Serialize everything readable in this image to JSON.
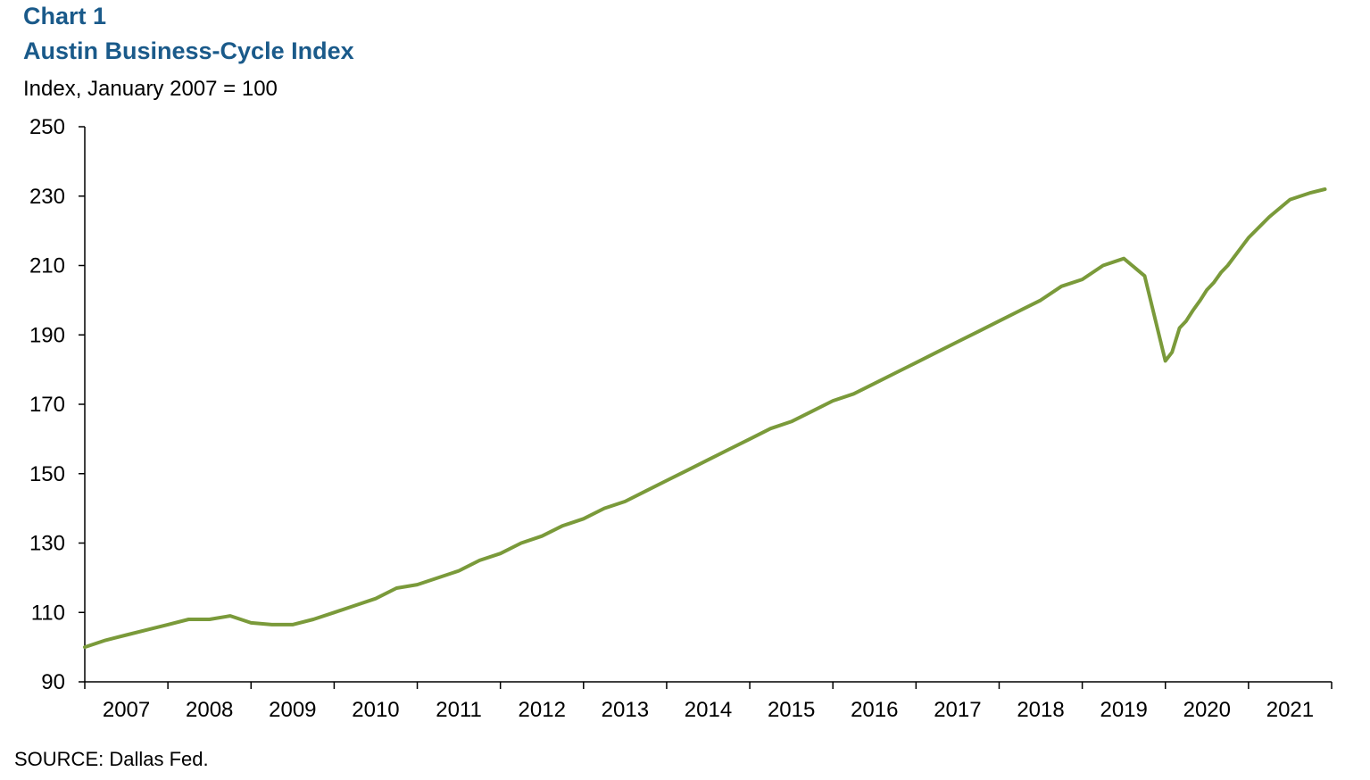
{
  "header": {
    "chart_number": "Chart 1",
    "title": "Austin Business-Cycle Index",
    "unit_label": "Index, January 2007 = 100"
  },
  "footer": {
    "source": "SOURCE: Dallas Fed."
  },
  "colors": {
    "title": "#1a5a8a",
    "series": "#7a9a3a",
    "axis": "#000000"
  },
  "chart_data": {
    "type": "line",
    "title": "Austin Business-Cycle Index",
    "ylabel": "Index, January 2007 = 100",
    "xlabel": "",
    "ylim": [
      90,
      250
    ],
    "xlim": [
      2007.0,
      2022.0
    ],
    "y_ticks": [
      90,
      110,
      130,
      150,
      170,
      190,
      210,
      230,
      250
    ],
    "x_tick_labels": [
      "2007",
      "2008",
      "2009",
      "2010",
      "2011",
      "2012",
      "2013",
      "2014",
      "2015",
      "2016",
      "2017",
      "2018",
      "2019",
      "2020",
      "2021"
    ],
    "grid": false,
    "legend": "none",
    "series": [
      {
        "x": [
          2007.0,
          2007.25,
          2007.5,
          2007.75,
          2008.0,
          2008.25,
          2008.5,
          2008.75,
          2009.0,
          2009.25,
          2009.5,
          2009.75,
          2010.0,
          2010.25,
          2010.5,
          2010.75,
          2011.0,
          2011.25,
          2011.5,
          2011.75,
          2012.0,
          2012.25,
          2012.5,
          2012.75,
          2013.0,
          2013.25,
          2013.5,
          2013.75,
          2014.0,
          2014.25,
          2014.5,
          2014.75,
          2015.0,
          2015.25,
          2015.5,
          2015.75,
          2016.0,
          2016.25,
          2016.5,
          2016.75,
          2017.0,
          2017.25,
          2017.5,
          2017.75,
          2018.0,
          2018.25,
          2018.5,
          2018.75,
          2019.0,
          2019.25,
          2019.5,
          2019.75,
          2020.0,
          2020.08,
          2020.17,
          2020.25,
          2020.33,
          2020.42,
          2020.5,
          2020.58,
          2020.67,
          2020.75,
          2021.0,
          2021.25,
          2021.5,
          2021.75,
          2021.92
        ],
        "y": [
          100,
          102,
          103.5,
          105,
          106.5,
          108,
          108,
          109,
          107,
          106.5,
          106.5,
          108,
          110,
          112,
          114,
          117,
          118,
          120,
          122,
          125,
          127,
          130,
          132,
          135,
          137,
          140,
          142,
          145,
          148,
          151,
          154,
          157,
          160,
          163,
          165,
          168,
          171,
          173,
          176,
          179,
          182,
          185,
          188,
          191,
          194,
          197,
          200,
          204,
          206,
          210,
          212,
          207,
          182.5,
          185,
          192,
          194,
          197,
          200,
          203,
          205,
          208,
          210,
          218,
          224,
          229,
          231,
          232
        ]
      }
    ]
  }
}
